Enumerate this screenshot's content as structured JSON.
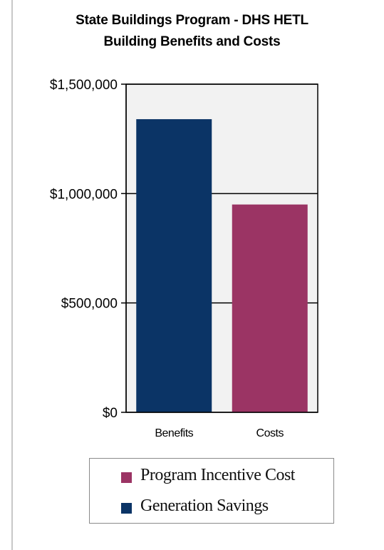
{
  "chart_data": {
    "type": "bar",
    "title": "State Buildings Program - DHS HETL",
    "subtitle": "Building Benefits and Costs",
    "categories": [
      "Benefits",
      "Costs"
    ],
    "series": [
      {
        "name": "Generation Savings",
        "values": [
          1340000,
          0
        ],
        "color": "#0b3466"
      },
      {
        "name": "Program Incentive Cost",
        "values": [
          0,
          950000
        ],
        "color": "#9b3464"
      }
    ],
    "bar_colors": [
      "#0b3466",
      "#9b3464"
    ],
    "bar_values": [
      1340000,
      950000
    ],
    "ylim": [
      0,
      1500000
    ],
    "yticks": [
      0,
      500000,
      1000000,
      1500000
    ],
    "ytick_labels": [
      "$0",
      "$500,000",
      "$1,000,000",
      "$1,500,000"
    ],
    "grid": true,
    "plot_background": "#f2f2f2",
    "legend_position": "bottom",
    "legend": [
      {
        "label": "Program Incentive Cost",
        "color": "#9b3464"
      },
      {
        "label": "Generation Savings",
        "color": "#0b3466"
      }
    ]
  }
}
